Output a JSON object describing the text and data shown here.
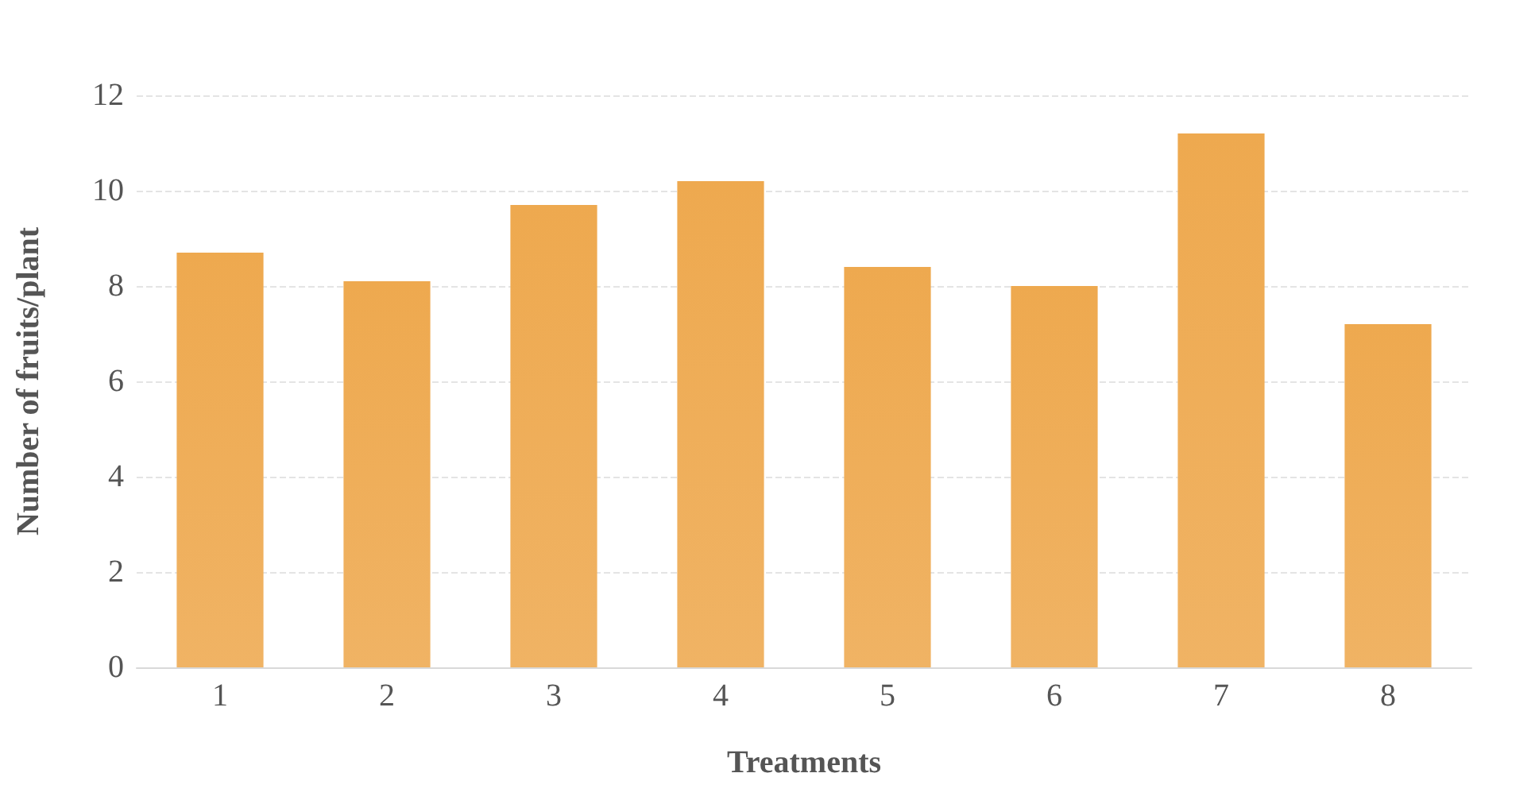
{
  "chart_data": {
    "type": "bar",
    "xlabel": "Treatments",
    "ylabel": "Number of fruits/plant",
    "categories": [
      "1",
      "2",
      "3",
      "4",
      "5",
      "6",
      "7",
      "8"
    ],
    "values": [
      8.7,
      8.1,
      9.7,
      10.2,
      8.4,
      8.0,
      11.2,
      7.2
    ],
    "color": "#eea94f",
    "ylim": [
      0,
      12
    ],
    "yticks": [
      0,
      2,
      4,
      6,
      8,
      10,
      12
    ],
    "grid": "y"
  }
}
